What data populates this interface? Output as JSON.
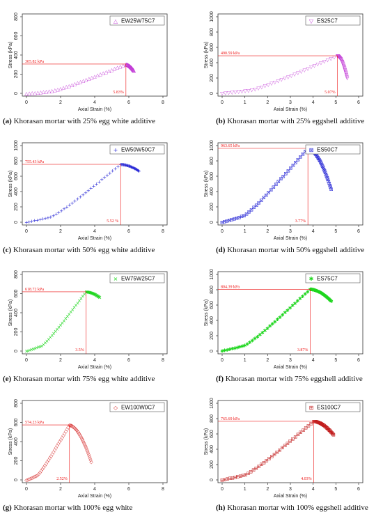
{
  "chart_data": [
    {
      "type": "scatter",
      "legend": "EW25W75C7",
      "marker": "△",
      "color": "#c23bd6",
      "xlabel": "Axial Strain (%)",
      "ylabel": "Stress (kPa)",
      "xlim": [
        0,
        8
      ],
      "ylim": [
        0,
        800
      ],
      "xticks": [
        0,
        2,
        4,
        6,
        8
      ],
      "yticks": [
        0,
        200,
        400,
        600,
        800
      ],
      "peak_label": "305.82 kPa",
      "peak_value": 305.82,
      "strain_label": "5.83%",
      "strain_value": 5.83,
      "end_x": 6.3,
      "end_y": 240,
      "caption_letter": "(a)",
      "caption": "Khorasan mortar with 25% egg white additive"
    },
    {
      "type": "scatter",
      "legend": "ES25C7",
      "marker": "▽",
      "color": "#c23bd6",
      "xlabel": "Axial Strain (%)",
      "ylabel": "Stress (kPa)",
      "xlim": [
        0,
        6
      ],
      "ylim": [
        0,
        1000
      ],
      "xticks": [
        0,
        1,
        2,
        3,
        4,
        5,
        6
      ],
      "yticks": [
        0,
        200,
        400,
        600,
        800,
        1000
      ],
      "peak_label": "490.59 kPa",
      "peak_value": 490.59,
      "strain_label": "5.07%",
      "strain_value": 5.07,
      "end_x": 5.5,
      "end_y": 200,
      "caption_letter": "(b)",
      "caption": "Khorasan mortar with 25% eggshell additive"
    },
    {
      "type": "scatter",
      "legend": "EW50W50C7",
      "marker": "+",
      "color": "#2a2ad6",
      "xlabel": "Axial Strain (%)",
      "ylabel": "Stress (kPa)",
      "xlim": [
        0,
        8
      ],
      "ylim": [
        0,
        1000
      ],
      "xticks": [
        0,
        2,
        4,
        6,
        8
      ],
      "yticks": [
        0,
        200,
        400,
        600,
        800,
        1000
      ],
      "peak_label": "755.43 kPa",
      "peak_value": 755.43,
      "strain_label": "5.52 %",
      "strain_value": 5.52,
      "end_x": 6.6,
      "end_y": 670,
      "caption_letter": "(c)",
      "caption": "Khorasan mortar with 50% egg white additive"
    },
    {
      "type": "scatter",
      "legend": "ES50C7",
      "marker": "⊠",
      "color": "#2a2ad6",
      "xlabel": "Axial Strain (%)",
      "ylabel": "Stress (kPa)",
      "xlim": [
        0,
        6
      ],
      "ylim": [
        0,
        1000
      ],
      "xticks": [
        0,
        1,
        2,
        3,
        4,
        5,
        6
      ],
      "yticks": [
        0,
        200,
        400,
        600,
        800,
        1000
      ],
      "peak_label": "963.65 kPa",
      "peak_value": 963.65,
      "strain_label": "3.77%",
      "strain_value": 3.77,
      "end_x": 4.8,
      "end_y": 430,
      "caption_letter": "(d)",
      "caption": "Khorasan mortar with 50% eggshell additive"
    },
    {
      "type": "scatter",
      "legend": "EW75W25C7",
      "marker": "×",
      "color": "#1fd61f",
      "xlabel": "Axial Strain (%)",
      "ylabel": "Stress (kPa)",
      "xlim": [
        0,
        8
      ],
      "ylim": [
        0,
        800
      ],
      "xticks": [
        0,
        2,
        4,
        6,
        8
      ],
      "yticks": [
        0,
        200,
        400,
        600,
        800
      ],
      "peak_label": "618.72 kPa",
      "peak_value": 618.72,
      "strain_label": "3.5%",
      "strain_value": 3.5,
      "end_x": 4.3,
      "end_y": 560,
      "caption_letter": "(e)",
      "caption": "Khorasan mortar with 75% egg white additive"
    },
    {
      "type": "scatter",
      "legend": "ES75C7",
      "marker": "✱",
      "color": "#1fd61f",
      "xlabel": "Axial Strain (%)",
      "ylabel": "Stress (kPa)",
      "xlim": [
        0,
        6
      ],
      "ylim": [
        0,
        1000
      ],
      "xticks": [
        0,
        1,
        2,
        3,
        4,
        5,
        6
      ],
      "yticks": [
        0,
        200,
        400,
        600,
        800,
        1000
      ],
      "peak_label": "804.39 kPa",
      "peak_value": 804.39,
      "strain_label": "3.87%",
      "strain_value": 3.87,
      "end_x": 4.8,
      "end_y": 650,
      "caption_letter": "(f)",
      "caption": "Khorasan mortar with 75% eggshell additive"
    },
    {
      "type": "scatter",
      "legend": "EW100W0C7",
      "marker": "◇",
      "color": "#d62a2a",
      "xlabel": "Axial Strain (%)",
      "ylabel": "Stress (kPa)",
      "xlim": [
        0,
        8
      ],
      "ylim": [
        0,
        800
      ],
      "xticks": [
        0,
        2,
        4,
        6,
        8
      ],
      "yticks": [
        0,
        200,
        400,
        600,
        800
      ],
      "peak_label": "574.23 kPa",
      "peak_value": 574.23,
      "strain_label": "2.52%",
      "strain_value": 2.52,
      "end_x": 3.8,
      "end_y": 190,
      "caption_letter": "(g)",
      "caption": "Khorasan mortar with 100% egg white"
    },
    {
      "type": "scatter",
      "legend": "ES100C7",
      "marker": "⊞",
      "color": "#c21f1f",
      "xlabel": "Axial Strain (%)",
      "ylabel": "Stress (kPa)",
      "xlim": [
        0,
        6
      ],
      "ylim": [
        0,
        1000
      ],
      "xticks": [
        0,
        1,
        2,
        3,
        4,
        5,
        6
      ],
      "yticks": [
        0,
        200,
        400,
        600,
        800,
        1000
      ],
      "peak_label": "765.69 kPa",
      "peak_value": 765.69,
      "strain_label": "4.03%",
      "strain_value": 4.03,
      "end_x": 4.9,
      "end_y": 590,
      "caption_letter": "(h)",
      "caption": "Khorasan mortar with 100% eggshell additive"
    }
  ]
}
